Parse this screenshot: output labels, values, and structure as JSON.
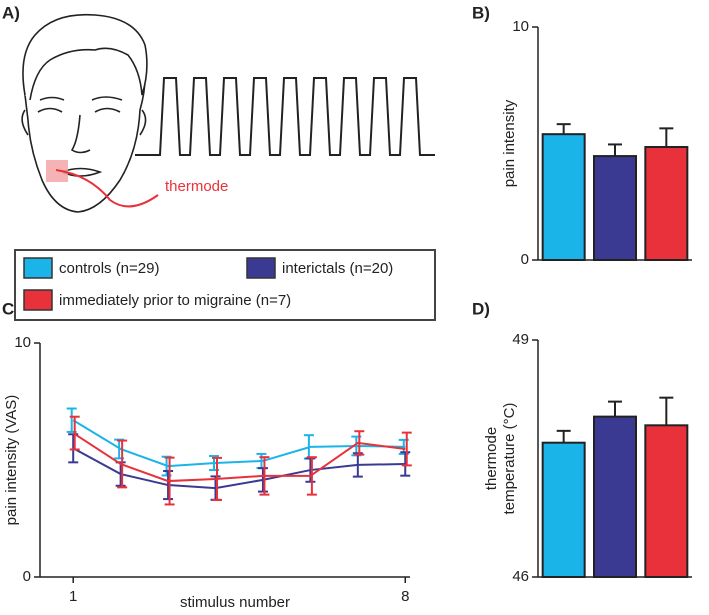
{
  "panel_labels": [
    "A)",
    "B)",
    "C)",
    "D)"
  ],
  "annotation": "thermode",
  "chart_data": [
    {
      "type": "bar",
      "ylabel": "pain intensity",
      "categories": [
        null,
        null,
        null
      ],
      "values": [
        5.4,
        4.46,
        4.85
      ],
      "errors": [
        0.43,
        0.5,
        0.8
      ],
      "colors": [
        "#1ab4e8",
        "#3a3a93",
        "#e8313a"
      ],
      "ylim": [
        0,
        10
      ],
      "yticks": [
        0,
        10
      ]
    },
    {
      "type": "line",
      "ylabel": "pain intensity (VAS)",
      "xlabel": "stimulus number",
      "x": [
        1,
        2,
        3,
        4,
        5,
        6,
        7,
        8
      ],
      "xlim": [
        0.3,
        8.1
      ],
      "xticks": [
        1,
        8
      ],
      "ylim": [
        0,
        10
      ],
      "yticks": [
        0,
        10
      ],
      "series": [
        {
          "name": "controls (n=29)",
          "color": "#1ab4e8",
          "values": [
            6.7,
            5.47,
            4.74,
            4.87,
            4.96,
            5.56,
            5.6,
            5.56
          ],
          "errors": [
            0.5,
            0.4,
            0.4,
            0.3,
            0.3,
            0.5,
            0.4,
            0.3
          ]
        },
        {
          "name": "interictals (n=20)",
          "color": "#3a3a93",
          "values": [
            5.5,
            4.4,
            3.93,
            3.8,
            4.15,
            4.57,
            4.79,
            4.83
          ],
          "errors": [
            0.6,
            0.5,
            0.6,
            0.5,
            0.5,
            0.5,
            0.5,
            0.5
          ]
        },
        {
          "name": "immediately prior to migraine (n=7)",
          "color": "#e8313a",
          "values": [
            6.15,
            4.83,
            4.1,
            4.19,
            4.32,
            4.32,
            5.73,
            5.47
          ],
          "errors": [
            0.7,
            1.0,
            1.0,
            0.9,
            0.8,
            0.8,
            0.5,
            0.7
          ]
        }
      ]
    },
    {
      "type": "bar",
      "ylabel": [
        "thermode",
        "temperature (°C)"
      ],
      "categories": [
        null,
        null,
        null
      ],
      "values": [
        47.7,
        48.03,
        47.92
      ],
      "errors": [
        0.15,
        0.19,
        0.35
      ],
      "colors": [
        "#1ab4e8",
        "#3a3a93",
        "#e8313a"
      ],
      "ylim": [
        46,
        49
      ],
      "yticks": [
        46,
        49
      ]
    }
  ]
}
